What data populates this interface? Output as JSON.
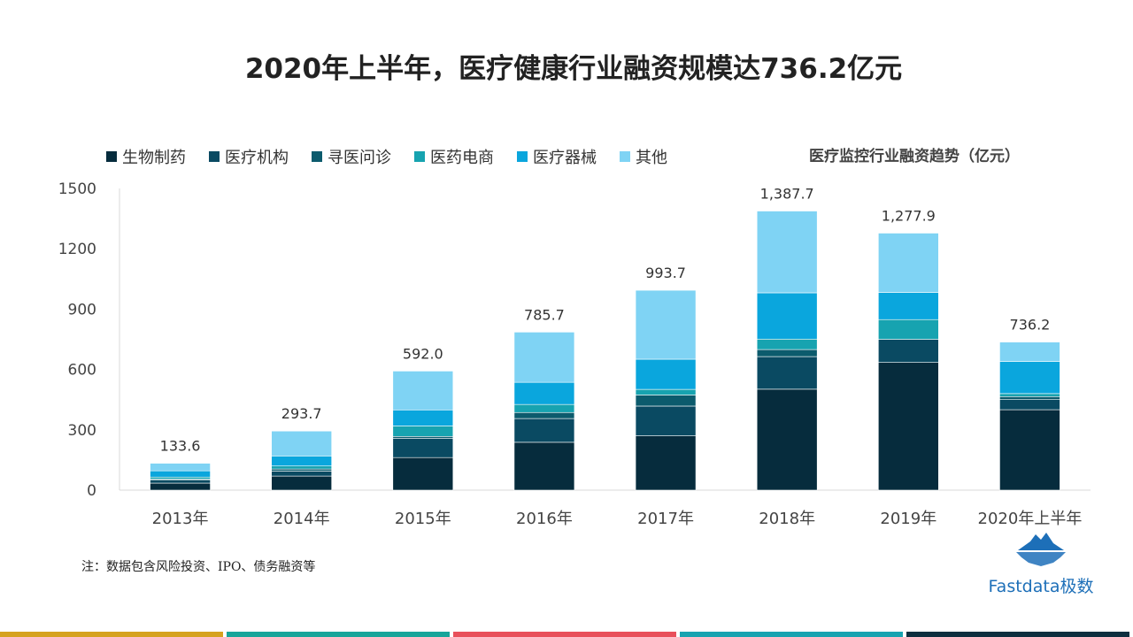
{
  "title": "2020年上半年，医疗健康行业融资规模达736.2亿元",
  "subtitle": "医疗监控行业融资趋势（亿元）",
  "note": "注：数据包含风险投资、IPO、债务融资等",
  "brand": {
    "name": "Fastdata极数"
  },
  "colors": [
    "#062c3d",
    "#0a4a62",
    "#0c5b6d",
    "#17a3b0",
    "#0aa6dd",
    "#7fd3f4"
  ],
  "strip_colors": [
    "#d6a21f",
    "#17a59a",
    "#e8505b",
    "#17a3b0",
    "#0d2f3f"
  ],
  "chart_data": {
    "type": "bar",
    "stacked": true,
    "title": "医疗监控行业融资趋势（亿元）",
    "categories": [
      "2013年",
      "2014年",
      "2015年",
      "2016年",
      "2017年",
      "2018年",
      "2019年",
      "2020年上半年"
    ],
    "totals": [
      133.6,
      293.7,
      592.0,
      785.7,
      993.7,
      1387.7,
      1277.9,
      736.2
    ],
    "total_labels": [
      "133.6",
      "293.7",
      "592.0",
      "785.7",
      "993.7",
      "1,387.7",
      "1,277.9",
      "736.2"
    ],
    "series": [
      {
        "name": "生物制药",
        "values": [
          35,
          70,
          162,
          238,
          270,
          502,
          635,
          400
        ]
      },
      {
        "name": "医疗机构",
        "values": [
          15,
          25,
          95,
          118,
          148,
          162,
          115,
          50
        ]
      },
      {
        "name": "寻医问诊",
        "values": [
          5,
          10,
          10,
          30,
          55,
          35,
          0,
          15
        ]
      },
      {
        "name": "医药电商",
        "values": [
          10,
          15,
          52,
          40,
          28,
          52,
          98,
          15
        ]
      },
      {
        "name": "医疗器械",
        "values": [
          31,
          50,
          80,
          110,
          150,
          230,
          135,
          160
        ]
      },
      {
        "name": "其他",
        "values": [
          37.6,
          123.7,
          193,
          249.7,
          342.7,
          406.7,
          294.9,
          96.2
        ]
      }
    ],
    "yticks": [
      "0",
      "300",
      "600",
      "900",
      "1200",
      "1500"
    ],
    "ylim": [
      0,
      1500
    ],
    "grid": false,
    "legend_position": "top-left"
  }
}
